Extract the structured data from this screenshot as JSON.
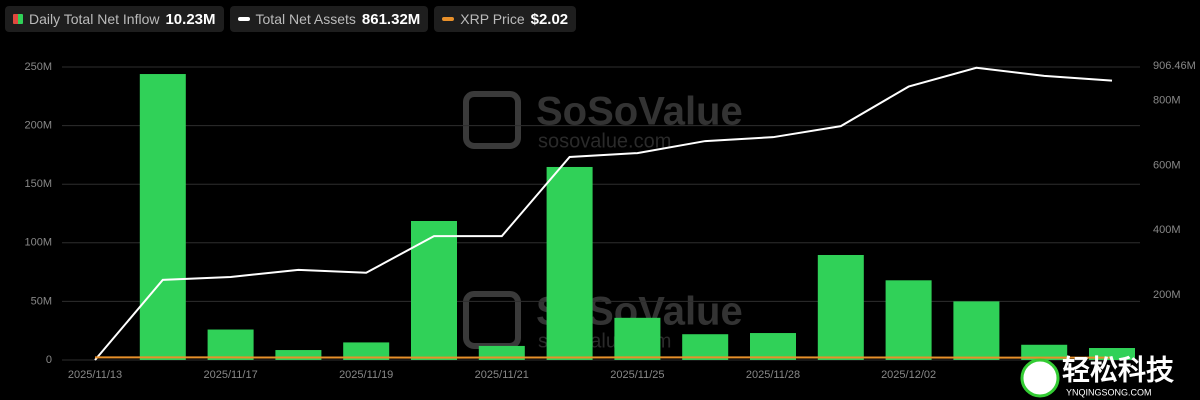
{
  "chart_data": {
    "type": "bar_line",
    "categories": [
      "2025/11/13",
      null,
      "2025/11/17",
      null,
      "2025/11/19",
      null,
      "2025/11/21",
      null,
      "2025/11/25",
      null,
      "2025/11/28",
      null,
      "2025/12/02",
      null,
      null,
      null
    ],
    "series": [
      {
        "name": "Daily Total Net Inflow",
        "legend_value": "10.23M",
        "kind": "bar",
        "color": "#30d158",
        "legend_color": "#e0483e",
        "values": [
          0,
          244,
          26,
          8.5,
          15,
          118.6,
          12,
          164.7,
          36,
          22,
          23,
          89.6,
          68,
          50,
          13,
          10.23
        ]
      },
      {
        "name": "Total Net Assets",
        "legend_value": "861.32M",
        "kind": "line",
        "axis": "y2",
        "color": "#ffffff",
        "values": [
          0,
          247,
          256,
          278,
          269,
          382,
          382,
          626,
          638,
          675,
          687,
          721,
          843,
          901,
          876,
          861.32
        ]
      },
      {
        "name": "XRP Price",
        "legend_value": "$2.02",
        "kind": "line",
        "color": "#e8902a",
        "values": [
          2.2,
          2.25,
          2.2,
          2.15,
          2.1,
          2.05,
          2.1,
          2.15,
          2.2,
          2.25,
          2.2,
          2.15,
          2.1,
          2.05,
          2.05,
          2.02
        ]
      }
    ],
    "ylim": [
      0,
      250
    ],
    "yticks": [
      0,
      {
        "value": 50,
        "label": "50M"
      },
      {
        "value": 100,
        "label": "100M"
      },
      {
        "value": 150,
        "label": "150M"
      },
      {
        "value": 200,
        "label": "200M"
      },
      {
        "value": 250,
        "label": "250M"
      }
    ],
    "y2lim": [
      0,
      906.46
    ],
    "y2ticks": [
      {
        "value": 200,
        "label": "200M"
      },
      {
        "value": 400,
        "label": "400M"
      },
      {
        "value": 600,
        "label": "600M"
      },
      {
        "value": 800,
        "label": "800M"
      },
      {
        "value": 906.46,
        "label": "906.46M"
      }
    ],
    "grid": true,
    "watermark": [
      "SoSoValue",
      "sosovalue.com"
    ],
    "corner_logo": [
      "轻松科技",
      "YNQINGSONG.COM"
    ]
  }
}
